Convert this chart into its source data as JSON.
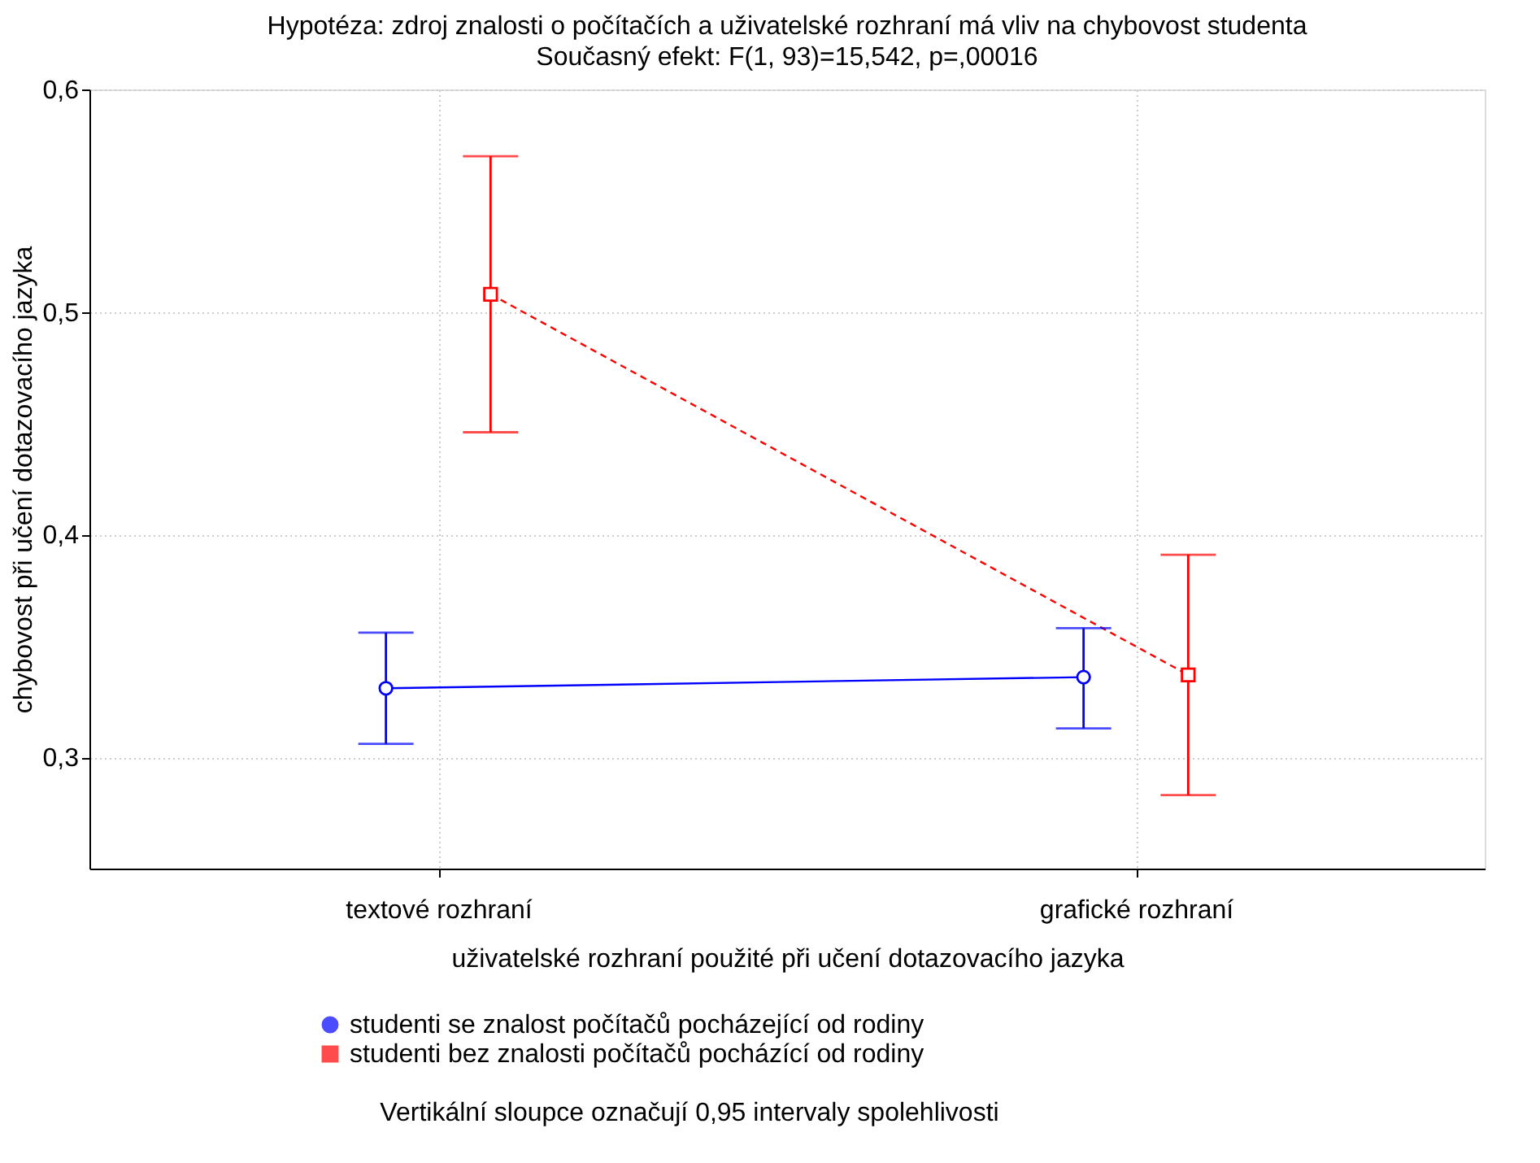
{
  "chart_data": {
    "type": "line",
    "title": "Hypotéza: zdroj znalosti o počítačích a uživatelské rozhraní má vliv na chybovost studenta",
    "subtitle": "Současný efekt: F(1, 93)=15,542, p=,00016",
    "xlabel": "uživatelské rozhraní použité při učení dotazovacího jazyka",
    "ylabel": "chybovost při učení dotazovacího jazyka",
    "categories": [
      "textové rozhraní",
      "grafické rozhraní"
    ],
    "series": [
      {
        "name": "studenti se znalost počítačů pocházející od rodiny",
        "color": "#0000ff",
        "marker": "circle",
        "line_style": "solid",
        "values": [
          0.331,
          0.336
        ],
        "errors": [
          [
            0.306,
            0.356
          ],
          [
            0.313,
            0.358
          ]
        ]
      },
      {
        "name": "studenti bez znalosti počítačů pocházící od rodiny",
        "color": "#ff0000",
        "marker": "square",
        "line_style": "dashed",
        "values": [
          0.508,
          0.337
        ],
        "errors": [
          [
            0.446,
            0.57
          ],
          [
            0.283,
            0.391
          ]
        ]
      }
    ],
    "ylim": [
      0.25,
      0.6
    ],
    "yticks": [
      {
        "value": 0.3,
        "label": "0,3"
      },
      {
        "value": 0.4,
        "label": "0,4"
      },
      {
        "value": 0.5,
        "label": "0,5"
      },
      {
        "value": 0.6,
        "label": "0,6"
      }
    ],
    "grid": true,
    "legend": "bottom",
    "annotations": [
      "Vertikální sloupce označují 0,95 intervaly spolehlivosti"
    ]
  }
}
